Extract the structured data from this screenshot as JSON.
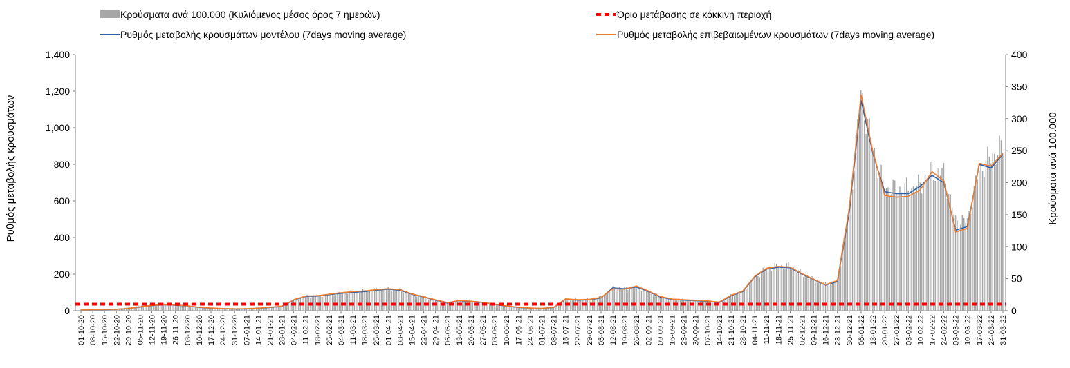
{
  "chart_data": {
    "type": "bar+line",
    "title": "",
    "legend": [
      {
        "key": "cases",
        "label": "Κρούσματα ανά 100.000 (Κυλιόμενος μέσος όρος 7 ημερών)",
        "style": "bar",
        "color": "#a6a6a6"
      },
      {
        "key": "threshold",
        "label": "Όριο μετάβασης σε κόκκινη περιοχή",
        "style": "dashed",
        "color": "#ff0000"
      },
      {
        "key": "model",
        "label": "Ρυθμός μεταβολής κρουσμάτων μοντέλου (7days moving average)",
        "style": "line",
        "color": "#2e5fa8"
      },
      {
        "key": "confirmed",
        "label": "Ρυθμός μεταβολής επιβεβαιωμένων κρουσμάτων (7days moving average)",
        "style": "line",
        "color": "#ed7d31"
      }
    ],
    "ylabel_left": "Ρυθμός μεταβολής κρουσμάτων",
    "ylabel_right": "Κρούσματα ανά 100.000",
    "ylim_left": [
      0,
      1400
    ],
    "ylim_right": [
      0,
      400
    ],
    "yticks_left": [
      "0",
      "200",
      "400",
      "600",
      "800",
      "1,000",
      "1,200",
      "1,400"
    ],
    "yticks_right": [
      "0",
      "50",
      "100",
      "150",
      "200",
      "250",
      "300",
      "350",
      "400"
    ],
    "x_dates": [
      "01-10-20",
      "08-10-20",
      "15-10-20",
      "22-10-20",
      "29-10-20",
      "05-11-20",
      "12-11-20",
      "19-11-20",
      "26-11-20",
      "03-12-20",
      "10-12-20",
      "17-12-20",
      "24-12-20",
      "31-12-20",
      "07-01-21",
      "14-01-21",
      "21-01-21",
      "28-01-21",
      "04-02-21",
      "11-02-21",
      "18-02-21",
      "25-02-21",
      "04-03-21",
      "11-03-21",
      "18-03-21",
      "25-03-21",
      "01-04-21",
      "08-04-21",
      "15-04-21",
      "22-04-21",
      "29-04-21",
      "06-05-21",
      "13-05-21",
      "20-05-21",
      "27-05-21",
      "03-06-21",
      "10-06-21",
      "17-06-21",
      "24-06-21",
      "01-07-21",
      "08-07-21",
      "15-07-21",
      "22-07-21",
      "29-07-21",
      "05-08-21",
      "12-08-21",
      "19-08-21",
      "26-08-21",
      "02-09-21",
      "09-09-21",
      "16-09-21",
      "23-09-21",
      "30-09-21",
      "07-10-21",
      "14-10-21",
      "21-10-21",
      "28-10-21",
      "04-11-21",
      "11-11-21",
      "18-11-21",
      "25-11-21",
      "02-12-21",
      "09-12-21",
      "16-12-21",
      "23-12-21",
      "30-12-21",
      "06-01-22",
      "13-01-22",
      "20-01-22",
      "27-01-22",
      "03-02-22",
      "10-02-22",
      "17-02-22",
      "24-02-22",
      "03-03-22",
      "10-03-22",
      "17-03-22",
      "24-03-22",
      "31-03-22"
    ],
    "cases_per_100k_weekly": [
      2,
      2,
      2,
      3,
      5,
      8,
      10,
      11,
      10,
      8,
      6,
      5,
      4,
      4,
      4,
      5,
      6,
      7,
      16,
      23,
      23,
      25,
      28,
      30,
      31,
      33,
      34,
      33,
      26,
      22,
      17,
      13,
      16,
      15,
      13,
      10,
      7,
      5,
      4,
      3,
      5,
      18,
      18,
      18,
      22,
      35,
      35,
      37,
      31,
      22,
      18,
      17,
      16,
      15,
      13,
      24,
      30,
      52,
      66,
      70,
      70,
      58,
      48,
      42,
      46,
      155,
      338,
      255,
      190,
      190,
      190,
      195,
      220,
      215,
      140,
      140,
      220,
      240,
      255
    ],
    "model_rate_weekly": [
      5,
      6,
      6,
      8,
      12,
      20,
      28,
      33,
      30,
      26,
      18,
      14,
      11,
      10,
      10,
      13,
      18,
      24,
      58,
      78,
      80,
      88,
      95,
      100,
      105,
      112,
      118,
      112,
      90,
      75,
      58,
      42,
      55,
      50,
      45,
      35,
      25,
      18,
      14,
      12,
      18,
      62,
      58,
      60,
      70,
      125,
      120,
      130,
      105,
      75,
      62,
      58,
      55,
      52,
      45,
      82,
      105,
      185,
      228,
      238,
      235,
      200,
      170,
      140,
      160,
      540,
      1150,
      860,
      650,
      640,
      640,
      680,
      740,
      700,
      440,
      460,
      800,
      780,
      855
    ],
    "confirmed_rate_weekly": [
      5,
      6,
      7,
      8,
      12,
      21,
      29,
      34,
      31,
      27,
      19,
      15,
      12,
      10,
      11,
      14,
      19,
      25,
      60,
      80,
      82,
      90,
      98,
      104,
      108,
      115,
      120,
      115,
      92,
      76,
      60,
      44,
      56,
      52,
      46,
      36,
      26,
      19,
      15,
      13,
      19,
      65,
      60,
      62,
      72,
      120,
      118,
      135,
      108,
      78,
      64,
      60,
      57,
      54,
      47,
      84,
      108,
      188,
      232,
      242,
      238,
      203,
      172,
      142,
      165,
      560,
      1180,
      870,
      630,
      620,
      625,
      660,
      760,
      710,
      430,
      450,
      805,
      790,
      860
    ],
    "threshold_left": 36
  }
}
